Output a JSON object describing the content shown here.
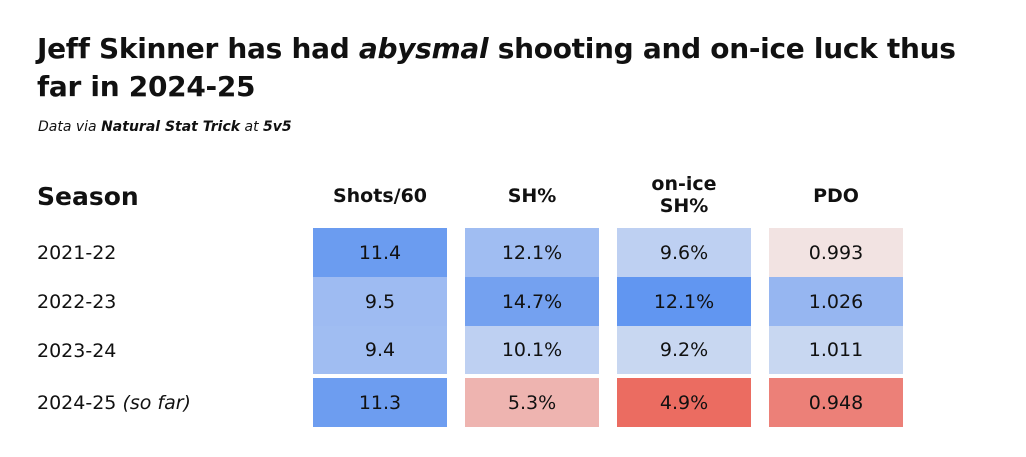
{
  "title": {
    "part1": "Jeff Skinner has had ",
    "emphasis": "abysmal",
    "part2": " shooting and on-ice luck thus far in 2024-25"
  },
  "subtitle": {
    "prefix": "Data via ",
    "source": "Natural Stat Trick",
    "mid": " at ",
    "strength": "5v5"
  },
  "chart_data": {
    "type": "table",
    "title": "Jeff Skinner has had abysmal shooting and on-ice luck thus far in 2024-25",
    "row_header": "Season",
    "columns": [
      {
        "key": "shots60",
        "line1": "Shots/60",
        "line2": ""
      },
      {
        "key": "sh",
        "line1": "SH%",
        "line2": ""
      },
      {
        "key": "onice",
        "line1": "on-ice",
        "line2": "SH%"
      },
      {
        "key": "pdo",
        "line1": "PDO",
        "line2": ""
      }
    ],
    "rows": [
      {
        "season": "2021-22",
        "note": "",
        "cells": [
          {
            "text": "11.4",
            "value": 11.4,
            "color": "#6b9cf0"
          },
          {
            "text": "12.1%",
            "value": 12.1,
            "color": "#a0bdf2"
          },
          {
            "text": "9.6%",
            "value": 9.6,
            "color": "#bed0f2"
          },
          {
            "text": "0.993",
            "value": 0.993,
            "color": "#f2e3e2"
          }
        ]
      },
      {
        "season": "2022-23",
        "note": "",
        "cells": [
          {
            "text": "9.5",
            "value": 9.5,
            "color": "#9ebbf2"
          },
          {
            "text": "14.7%",
            "value": 14.7,
            "color": "#74a1f0"
          },
          {
            "text": "12.1%",
            "value": 12.1,
            "color": "#6196f1"
          },
          {
            "text": "1.026",
            "value": 1.026,
            "color": "#96b6f1"
          }
        ]
      },
      {
        "season": "2023-24",
        "note": "",
        "cells": [
          {
            "text": "9.4",
            "value": 9.4,
            "color": "#a0bdf2"
          },
          {
            "text": "10.1%",
            "value": 10.1,
            "color": "#bed0f2"
          },
          {
            "text": "9.2%",
            "value": 9.2,
            "color": "#c8d7f1"
          },
          {
            "text": "1.011",
            "value": 1.011,
            "color": "#c8d7f1"
          }
        ]
      },
      {
        "season": "2024-25",
        "note": "(so far)",
        "cells": [
          {
            "text": "11.3",
            "value": 11.3,
            "color": "#6d9df0"
          },
          {
            "text": "5.3%",
            "value": 5.3,
            "color": "#eeb4b0"
          },
          {
            "text": "4.9%",
            "value": 4.9,
            "color": "#eb6c61"
          },
          {
            "text": "0.948",
            "value": 0.948,
            "color": "#ec8078"
          }
        ]
      }
    ]
  }
}
